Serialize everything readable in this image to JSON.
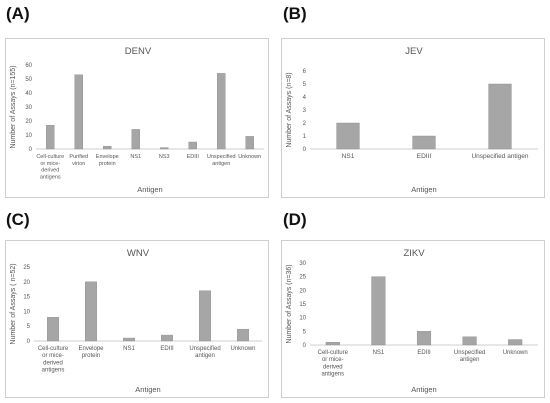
{
  "panels": [
    "(A)",
    "(B)",
    "(C)",
    "(D)"
  ],
  "colors": {
    "bar": "#a6a6a6",
    "bar_stroke": "#8c8c8c",
    "axis": "#bfbfbf",
    "grid": "#d9d9d9",
    "frame": "#cfcfcf"
  },
  "chart_data": [
    {
      "type": "bar",
      "title": "DENV",
      "xlabel": "Antigen",
      "ylabel": "Number of Assays (n=155)",
      "ylim": [
        0,
        60
      ],
      "yticks": [
        0,
        10,
        20,
        30,
        40,
        50,
        60
      ],
      "grid": false,
      "categories": [
        [
          "Cell-culture",
          "or mice-",
          "derived",
          "antigens"
        ],
        [
          "Purified",
          "virion"
        ],
        [
          "Envelope",
          "protein"
        ],
        [
          "NS1"
        ],
        [
          "NS3"
        ],
        [
          "EDIII"
        ],
        [
          "Unspecified",
          "antigen"
        ],
        [
          "Unknown"
        ]
      ],
      "values": [
        17,
        53,
        2,
        14,
        1,
        5,
        54,
        9
      ]
    },
    {
      "type": "bar",
      "title": "JEV",
      "xlabel": "Antigen",
      "ylabel": "Number of Assays (n=8)",
      "ylim": [
        0,
        6
      ],
      "yticks": [
        0,
        1,
        2,
        3,
        4,
        5,
        6
      ],
      "grid": false,
      "categories": [
        [
          "NS1"
        ],
        [
          "EDIII"
        ],
        [
          "Unspecified antigen"
        ]
      ],
      "values": [
        2,
        1,
        5
      ]
    },
    {
      "type": "bar",
      "title": "WNV",
      "xlabel": "Antigen",
      "ylabel": "Number of Assays ( n=52)",
      "ylim": [
        0,
        25
      ],
      "yticks": [
        0,
        5,
        10,
        15,
        20,
        25
      ],
      "grid": false,
      "categories": [
        [
          "Cell-culture",
          "or mice-",
          "derived",
          "antigens"
        ],
        [
          "Envelope",
          "protein"
        ],
        [
          "NS1"
        ],
        [
          "EDIII"
        ],
        [
          "Unspecified",
          "antigen"
        ],
        [
          "Unknown"
        ]
      ],
      "values": [
        8,
        20,
        1,
        2,
        17,
        4
      ]
    },
    {
      "type": "bar",
      "title": "ZIKV",
      "xlabel": "Antigen",
      "ylabel": "Number of Assays (n=36)",
      "ylim": [
        0,
        30
      ],
      "yticks": [
        0,
        5,
        10,
        15,
        20,
        25,
        30
      ],
      "grid": false,
      "categories": [
        [
          "Cell-culture",
          "or mice-",
          "derived",
          "antigens"
        ],
        [
          "NS1"
        ],
        [
          "EDIII"
        ],
        [
          "Unspecified",
          "antigen"
        ],
        [
          "Unknown"
        ]
      ],
      "values": [
        1,
        25,
        5,
        3,
        2
      ]
    }
  ]
}
